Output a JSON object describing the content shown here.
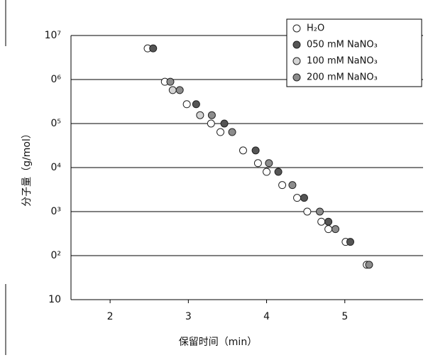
{
  "chart_data": {
    "type": "scatter",
    "xlabel": "保留时间（min）",
    "ylabel": "分子量（g/mol）",
    "log_y": true,
    "grid": true,
    "legend": "top-right",
    "xlim": [
      1.5,
      6.0
    ],
    "xticks": [
      2,
      3,
      4,
      5
    ],
    "ylim": [
      10,
      10000000
    ],
    "yticks": [
      {
        "value": 10000000,
        "label": "10⁷"
      },
      {
        "value": 1000000,
        "label": "0⁶"
      },
      {
        "value": 100000,
        "label": "0⁵"
      },
      {
        "value": 10000,
        "label": "0⁴"
      },
      {
        "value": 1000,
        "label": "0³"
      },
      {
        "value": 100,
        "label": "0²"
      },
      {
        "value": 10,
        "label": "10"
      }
    ],
    "series": [
      {
        "name": "H₂O",
        "color": "#ffffff",
        "x": [
          2.48,
          2.7,
          2.98,
          3.29,
          3.41,
          3.7,
          3.89,
          4.0,
          4.2,
          4.39,
          4.52,
          4.7,
          4.79,
          5.01,
          5.28
        ],
        "values": [
          5100000,
          890000,
          275000,
          100000,
          64000,
          24500,
          12600,
          8000,
          4000,
          2050,
          1000,
          590,
          400,
          205,
          62
        ]
      },
      {
        "name": "050 mM NaNO₃",
        "color": "#555555",
        "x": [
          2.55,
          3.1,
          3.46,
          3.86,
          4.15,
          4.48,
          4.79,
          5.07
        ],
        "values": [
          5100000,
          275000,
          100000,
          24500,
          8000,
          2050,
          590,
          205
        ]
      },
      {
        "name": "100 mM NaNO₃",
        "color": "#d4d4d4",
        "x": [
          2.8,
          3.15
        ],
        "values": [
          575000,
          155000
        ]
      },
      {
        "name": "200 mM NaNO₃",
        "color": "#8c8c8c",
        "x": [
          2.77,
          2.89,
          3.3,
          3.56,
          4.03,
          4.33,
          4.68,
          4.88,
          5.31
        ],
        "values": [
          890000,
          575000,
          155000,
          64000,
          12600,
          4000,
          1000,
          400,
          62
        ]
      }
    ]
  }
}
